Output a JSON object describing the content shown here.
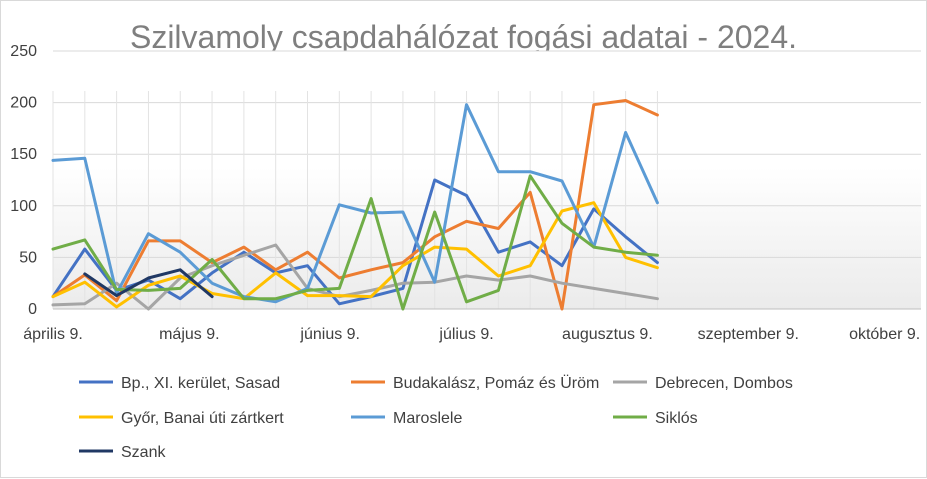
{
  "chart_data": {
    "type": "line",
    "title": "Szilvamoly csapdahálózat fogási adatai - 2024.",
    "xlabel": "",
    "ylabel": "",
    "ylim": [
      0,
      250
    ],
    "y_ticks": [
      "0",
      "50",
      "100",
      "150",
      "200",
      "250"
    ],
    "x_ticks": [
      {
        "label": "április 9.",
        "day": 100
      },
      {
        "label": "május 9.",
        "day": 130
      },
      {
        "label": "június 9.",
        "day": 161
      },
      {
        "label": "július 9.",
        "day": 191
      },
      {
        "label": "augusztus 9.",
        "day": 222
      },
      {
        "label": "szeptember 9.",
        "day": 253
      },
      {
        "label": "október 9.",
        "day": 283
      }
    ],
    "xlim_day": [
      100,
      291
    ],
    "dates": [
      "2024-04-09",
      "2024-04-16",
      "2024-04-23",
      "2024-04-30",
      "2024-05-07",
      "2024-05-14",
      "2024-05-21",
      "2024-05-28",
      "2024-06-04",
      "2024-06-11",
      "2024-06-18",
      "2024-06-25",
      "2024-07-02",
      "2024-07-09",
      "2024-07-16",
      "2024-07-23",
      "2024-07-30",
      "2024-08-06",
      "2024-08-13",
      "2024-08-20"
    ],
    "days": [
      100,
      107,
      114,
      121,
      128,
      135,
      142,
      149,
      156,
      163,
      170,
      177,
      184,
      191,
      198,
      205,
      212,
      219,
      226,
      233
    ],
    "gridlines": "horizontal",
    "legend_position": "bottom",
    "series": [
      {
        "name": "Bp., XI. kerület, Sasad",
        "color": "#4472c4",
        "width": 3,
        "values": [
          12,
          58,
          18,
          28,
          10,
          35,
          55,
          35,
          42,
          5,
          12,
          20,
          125,
          110,
          55,
          65,
          42,
          97,
          70,
          45
        ]
      },
      {
        "name": "Budakalász, Pomáz és Üröm",
        "color": "#ed7d31",
        "width": 3,
        "values": [
          12,
          33,
          8,
          66,
          66,
          45,
          60,
          38,
          55,
          30,
          38,
          45,
          70,
          85,
          78,
          113,
          0,
          198,
          202,
          188
        ]
      },
      {
        "name": "Debrecen, Dombos",
        "color": "#a5a5a5",
        "width": 3,
        "values": [
          4,
          5,
          25,
          0,
          30,
          42,
          52,
          62,
          20,
          12,
          18,
          25,
          26,
          32,
          28,
          32,
          25,
          20,
          15,
          10
        ]
      },
      {
        "name": "Győr, Banai úti zártkert",
        "color": "#ffc000",
        "width": 3,
        "values": [
          12,
          26,
          2,
          23,
          32,
          15,
          10,
          35,
          13,
          13,
          12,
          42,
          60,
          58,
          32,
          42,
          95,
          103,
          50,
          40
        ]
      },
      {
        "name": "Maroslele",
        "color": "#5b9bd5",
        "width": 3,
        "values": [
          144,
          146,
          15,
          73,
          55,
          25,
          12,
          7,
          20,
          101,
          93,
          94,
          26,
          198,
          133,
          133,
          124,
          60,
          171,
          103
        ]
      },
      {
        "name": "Siklós",
        "color": "#70ad47",
        "width": 3,
        "values": [
          58,
          67,
          19,
          18,
          20,
          48,
          10,
          10,
          18,
          20,
          107,
          0,
          94,
          7,
          18,
          129,
          83,
          60,
          55,
          52
        ]
      },
      {
        "name": "Szank",
        "color": "#203864",
        "width": 3,
        "values": [
          null,
          34,
          13,
          30,
          38,
          12,
          null,
          null,
          null,
          null,
          null,
          null,
          null,
          null,
          null,
          null,
          null,
          null,
          null,
          null
        ]
      }
    ]
  }
}
